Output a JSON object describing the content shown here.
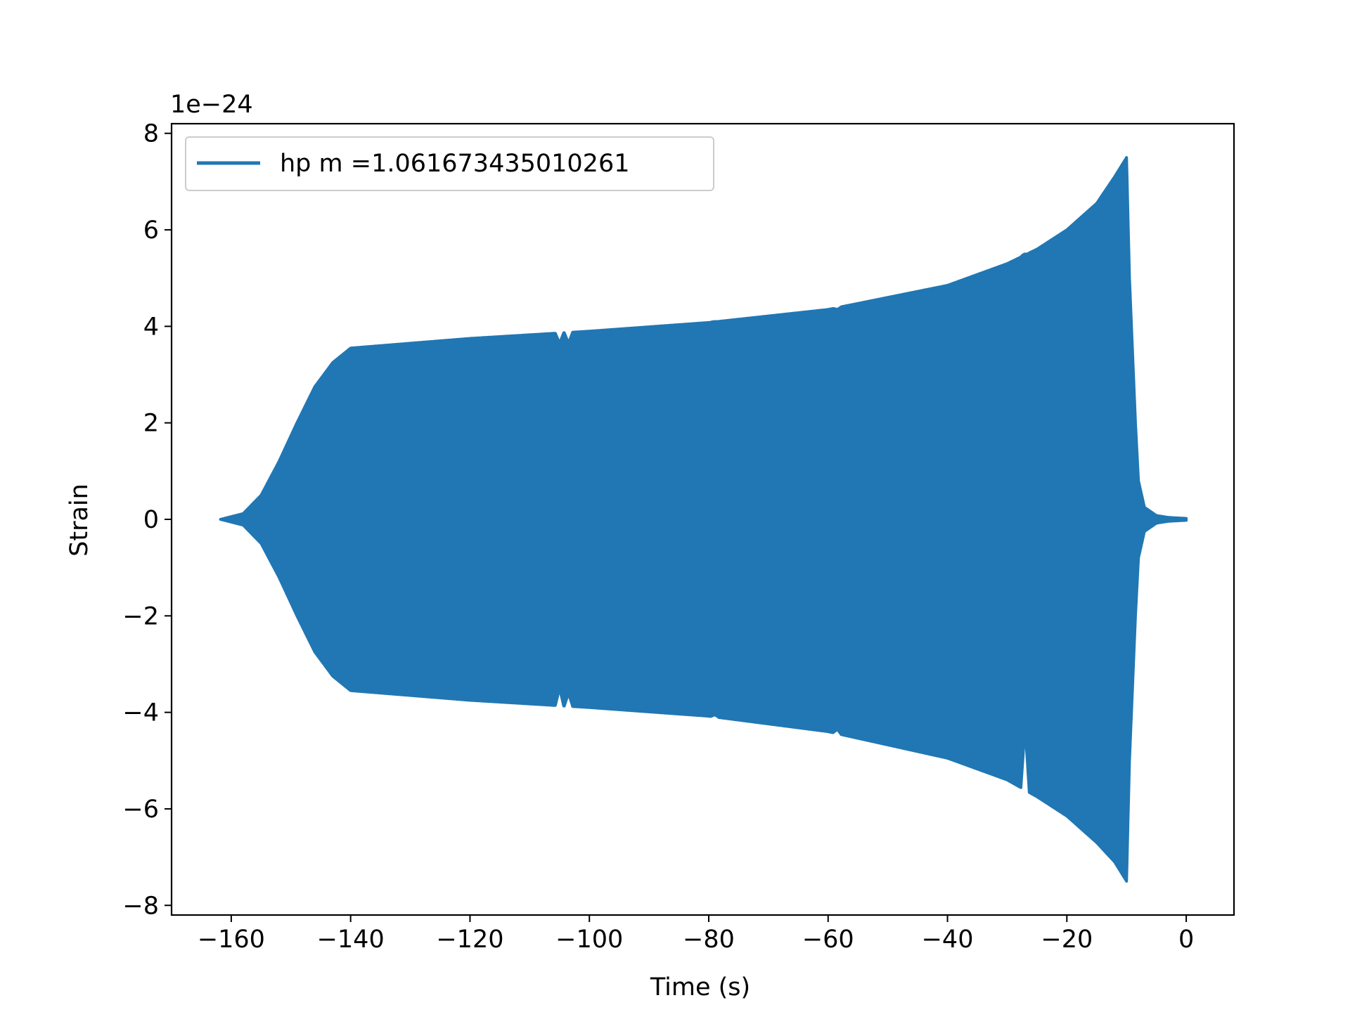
{
  "chart_data": {
    "type": "area",
    "title": "",
    "xlabel": "Time (s)",
    "ylabel": "Strain",
    "offset_label": "1e−24",
    "xlim": [
      -170,
      8
    ],
    "ylim": [
      -8.2,
      8.2
    ],
    "x_ticks": [
      -160,
      -140,
      -120,
      -100,
      -80,
      -60,
      -40,
      -20,
      0
    ],
    "x_tick_labels": [
      "−160",
      "−140",
      "−120",
      "−100",
      "−80",
      "−60",
      "−40",
      "−20",
      "0"
    ],
    "y_ticks": [
      -8,
      -6,
      -4,
      -2,
      0,
      2,
      4,
      6,
      8
    ],
    "y_tick_labels": [
      "−8",
      "−6",
      "−4",
      "−2",
      "0",
      "2",
      "4",
      "6",
      "8"
    ],
    "grid": false,
    "legend": {
      "placement": "top-left",
      "entries": [
        "hp m =1.061673435010261"
      ]
    },
    "series": [
      {
        "name": "hp m =1.061673435010261",
        "color": "#2077b4",
        "envelope": {
          "x": [
            -161.8,
            -158,
            -155,
            -152,
            -149,
            -146,
            -143,
            -140,
            -120,
            -100,
            -80,
            -60,
            -40,
            -30,
            -25,
            -20,
            -15,
            -12,
            -10,
            -9.5,
            -9,
            -8.5,
            -8,
            -7,
            -5,
            -3,
            0
          ],
          "upper": [
            0.0,
            0.12,
            0.5,
            1.2,
            2.0,
            2.75,
            3.25,
            3.55,
            3.75,
            3.9,
            4.08,
            4.35,
            4.85,
            5.3,
            5.6,
            6.0,
            6.55,
            7.1,
            7.5,
            5.0,
            3.5,
            2.0,
            0.8,
            0.25,
            0.08,
            0.04,
            0.02
          ],
          "lower": [
            0.0,
            -0.12,
            -0.5,
            -1.2,
            -2.0,
            -2.75,
            -3.25,
            -3.55,
            -3.75,
            -3.9,
            -4.08,
            -4.4,
            -4.95,
            -5.4,
            -5.75,
            -6.15,
            -6.7,
            -7.1,
            -7.5,
            -5.0,
            -3.5,
            -2.0,
            -0.8,
            -0.25,
            -0.08,
            -0.04,
            -0.02
          ]
        },
        "notches": [
          {
            "x": -105,
            "upper": 3.65,
            "lower": -3.5
          },
          {
            "x": -103.5,
            "upper": 3.65,
            "lower": -3.6
          },
          {
            "x": -79,
            "upper": 4.1,
            "lower": -4.05
          },
          {
            "x": -58.5,
            "upper": 4.35,
            "lower": -4.35
          },
          {
            "x": -27,
            "upper": 5.5,
            "lower": -4.3
          }
        ]
      }
    ]
  }
}
